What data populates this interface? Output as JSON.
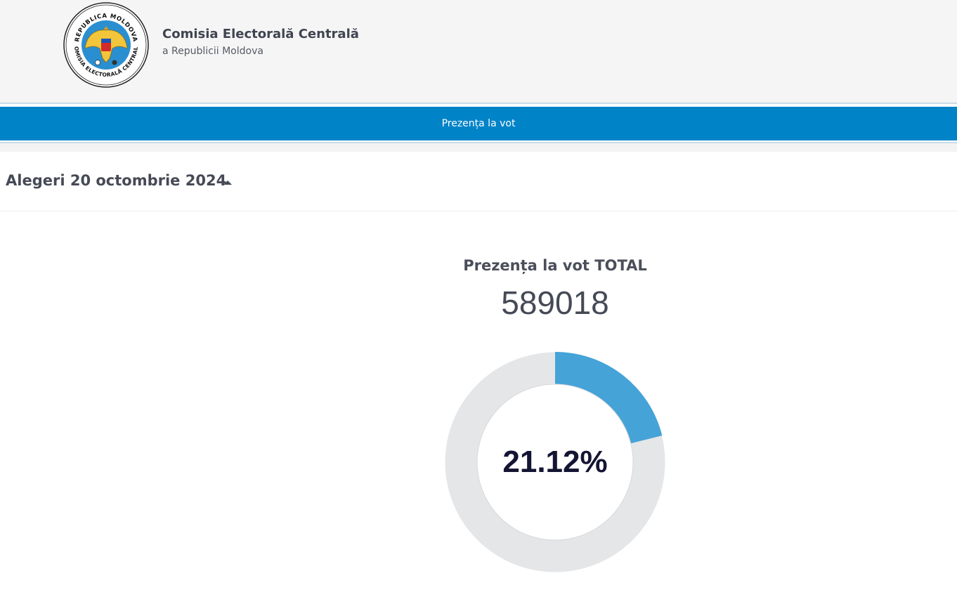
{
  "header": {
    "org_name": "Comisia Electorală Centrală",
    "org_subtitle": "a Republicii Moldova",
    "logo": {
      "icon": "cec-seal-icon",
      "text_top": "REPUBLICA MOLDOVA",
      "text_bottom": "COMISIA ELECTORALĂ CENTRALĂ"
    }
  },
  "nav": {
    "items": [
      {
        "label": "Prezența la vot"
      }
    ]
  },
  "election": {
    "title": "Alegeri 20 octombrie 2024",
    "toggle_icon": "caret-up-icon"
  },
  "turnout": {
    "label": "Prezența la vot TOTAL",
    "total": "589018",
    "percent_text": "21.12%",
    "percent_value": 21.12,
    "colors": {
      "filled": "#45a3d8",
      "track": "#e5e6e8"
    }
  },
  "colors": {
    "nav_bg": "#0083c7",
    "header_bg": "#f5f5f5"
  }
}
